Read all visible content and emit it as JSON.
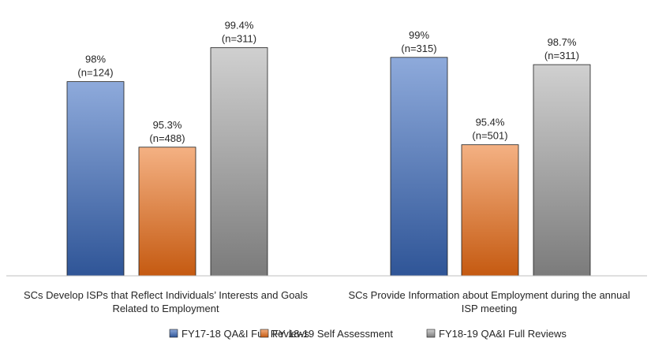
{
  "chart_data": {
    "type": "bar",
    "categories": [
      [
        "SCs Develop ISPs that Reflect Individuals’ Interests and Goals",
        "Related to Employment"
      ],
      [
        "SCs Provide Information about Employment during the annual",
        "ISP meeting"
      ]
    ],
    "series": [
      {
        "name": "FY17-18 QA&I Full Reviews",
        "values": [
          98,
          99
        ],
        "labels": [
          [
            "98%",
            "(n=124)"
          ],
          [
            "99%",
            "(n=315)"
          ]
        ],
        "color_top": "#8eaadb",
        "color_bottom": "#2f5597"
      },
      {
        "name": "FY 18-19 Self Assessment",
        "values": [
          95.3,
          95.4
        ],
        "labels": [
          [
            "95.3%",
            "(n=488)"
          ],
          [
            "95.4%",
            "(n=501)"
          ]
        ],
        "color_top": "#f4b183",
        "color_bottom": "#c55a11"
      },
      {
        "name": "FY18-19 QA&I Full Reviews",
        "values": [
          99.4,
          98.7
        ],
        "labels": [
          [
            "99.4%",
            "(n=311)"
          ],
          [
            "98.7%",
            "(n=311)"
          ]
        ],
        "color_top": "#d0d0d0",
        "color_bottom": "#7b7b7b"
      }
    ],
    "ylim": [
      90,
      100
    ],
    "legend": "bottom",
    "grid": false
  }
}
